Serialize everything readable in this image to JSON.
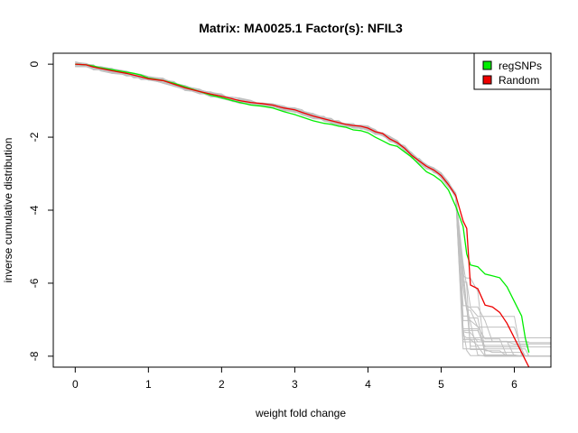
{
  "chart_data": {
    "type": "line",
    "title": "Matrix: MA0025.1 Factor(s): NFIL3",
    "xlabel": "weight fold change",
    "ylabel": "inverse cumulative distribution",
    "xlim": [
      -0.3,
      6.5
    ],
    "ylim": [
      -8.3,
      0.3
    ],
    "xticks": [
      "0",
      "1",
      "2",
      "3",
      "4",
      "5",
      "6"
    ],
    "xtick_values": [
      0,
      1,
      2,
      3,
      4,
      5,
      6
    ],
    "yticks": [
      "0",
      "-2",
      "-4",
      "-6",
      "-8"
    ],
    "ytick_values": [
      0,
      -2,
      -4,
      -6,
      -8
    ],
    "grid": false,
    "legend_position": "top-right",
    "series": [
      {
        "name": "regSNPs",
        "color": "#00ee00",
        "x": [
          0,
          0.15,
          0.25,
          0.35,
          0.5,
          0.7,
          0.8,
          0.9,
          1.0,
          1.2,
          1.35,
          1.5,
          1.7,
          1.85,
          2.0,
          2.15,
          2.25,
          2.4,
          2.55,
          2.7,
          2.85,
          3.0,
          3.1,
          3.25,
          3.4,
          3.5,
          3.6,
          3.7,
          3.8,
          3.9,
          4.0,
          4.1,
          4.2,
          4.3,
          4.4,
          4.5,
          4.6,
          4.7,
          4.8,
          4.9,
          5.0,
          5.1,
          5.2,
          5.3,
          5.35,
          5.4,
          5.5,
          5.6,
          5.7,
          5.8,
          5.9,
          6.0,
          6.1,
          6.15,
          6.2
        ],
        "y": [
          0,
          -0.02,
          -0.05,
          -0.1,
          -0.15,
          -0.22,
          -0.25,
          -0.3,
          -0.38,
          -0.45,
          -0.52,
          -0.62,
          -0.75,
          -0.85,
          -0.92,
          -1.0,
          -1.05,
          -1.12,
          -1.15,
          -1.2,
          -1.3,
          -1.38,
          -1.45,
          -1.55,
          -1.62,
          -1.65,
          -1.7,
          -1.73,
          -1.8,
          -1.82,
          -1.88,
          -2.0,
          -2.1,
          -2.2,
          -2.25,
          -2.4,
          -2.55,
          -2.75,
          -2.95,
          -3.05,
          -3.2,
          -3.45,
          -3.9,
          -4.45,
          -5.2,
          -5.5,
          -5.55,
          -5.75,
          -5.8,
          -5.85,
          -6.1,
          -6.5,
          -6.9,
          -7.5,
          -7.9
        ]
      },
      {
        "name": "Random",
        "color": "#ee0000",
        "x": [
          0,
          0.15,
          0.25,
          0.35,
          0.5,
          0.7,
          0.8,
          0.9,
          1.0,
          1.2,
          1.35,
          1.5,
          1.7,
          1.85,
          2.0,
          2.15,
          2.25,
          2.4,
          2.55,
          2.7,
          2.85,
          3.0,
          3.1,
          3.25,
          3.4,
          3.5,
          3.6,
          3.7,
          3.8,
          3.9,
          4.0,
          4.1,
          4.2,
          4.3,
          4.4,
          4.5,
          4.6,
          4.7,
          4.8,
          4.9,
          5.0,
          5.1,
          5.2,
          5.3,
          5.35,
          5.4,
          5.5,
          5.6,
          5.7,
          5.8,
          5.9,
          6.0,
          6.1,
          6.15,
          6.2
        ],
        "y": [
          0,
          -0.02,
          -0.08,
          -0.12,
          -0.18,
          -0.25,
          -0.3,
          -0.35,
          -0.4,
          -0.45,
          -0.55,
          -0.65,
          -0.75,
          -0.82,
          -0.88,
          -0.95,
          -1.0,
          -1.05,
          -1.08,
          -1.12,
          -1.2,
          -1.25,
          -1.32,
          -1.42,
          -1.5,
          -1.55,
          -1.6,
          -1.65,
          -1.68,
          -1.7,
          -1.75,
          -1.85,
          -1.9,
          -2.05,
          -2.15,
          -2.3,
          -2.5,
          -2.65,
          -2.8,
          -2.9,
          -3.05,
          -3.3,
          -3.6,
          -4.3,
          -4.5,
          -6.05,
          -6.15,
          -6.6,
          -6.65,
          -6.8,
          -7.1,
          -7.5,
          -7.9,
          -8.1,
          -8.3
        ]
      }
    ],
    "random_curves_color": "#c0c0c0",
    "random_curves_count": 18
  }
}
